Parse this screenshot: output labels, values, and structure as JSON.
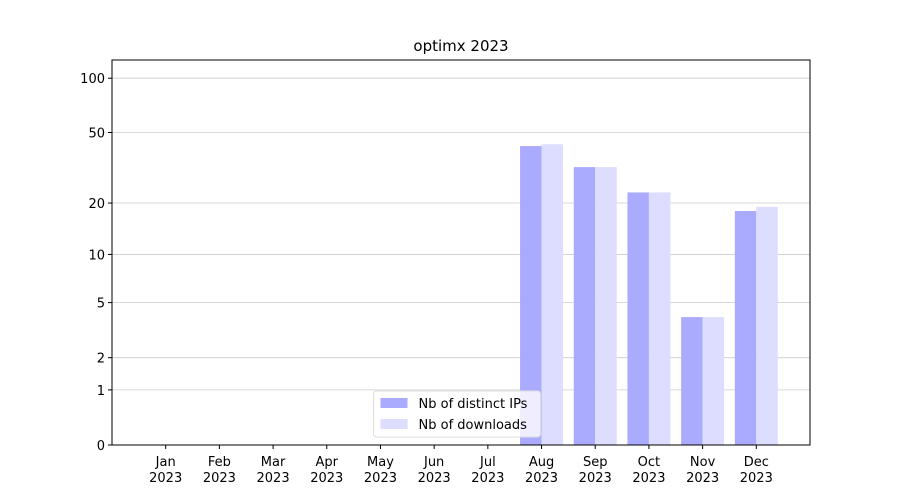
{
  "chart_data": {
    "type": "bar",
    "title": "optimx 2023",
    "categories": [
      [
        "Jan",
        "2023"
      ],
      [
        "Feb",
        "2023"
      ],
      [
        "Mar",
        "2023"
      ],
      [
        "Apr",
        "2023"
      ],
      [
        "May",
        "2023"
      ],
      [
        "Jun",
        "2023"
      ],
      [
        "Jul",
        "2023"
      ],
      [
        "Aug",
        "2023"
      ],
      [
        "Sep",
        "2023"
      ],
      [
        "Oct",
        "2023"
      ],
      [
        "Nov",
        "2023"
      ],
      [
        "Dec",
        "2023"
      ]
    ],
    "series": [
      {
        "name": "Nb of distinct IPs",
        "color": "#aaaaff",
        "values": [
          0,
          0,
          0,
          0,
          0,
          0,
          0,
          42,
          32,
          23,
          4,
          18
        ]
      },
      {
        "name": "Nb of downloads",
        "color": "#ddddff",
        "values": [
          0,
          0,
          0,
          0,
          0,
          0,
          0,
          43,
          32,
          23,
          4,
          19
        ]
      }
    ],
    "yscale": "log1p",
    "ylim": [
      0,
      126
    ],
    "yticks": [
      0,
      1,
      2,
      5,
      10,
      20,
      50,
      100
    ],
    "grid": true,
    "legend": "lower center"
  }
}
